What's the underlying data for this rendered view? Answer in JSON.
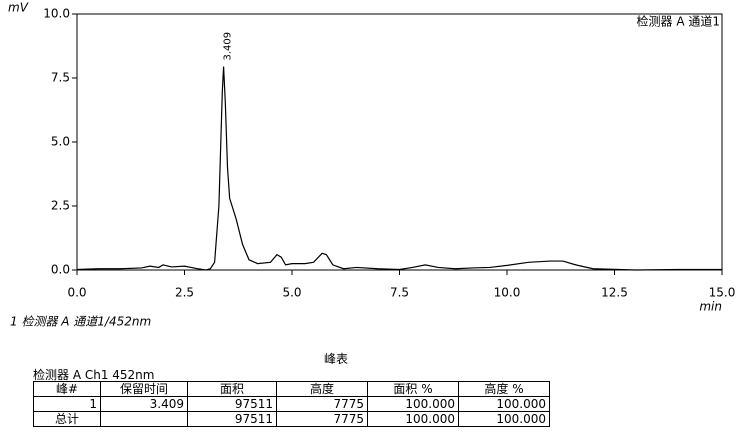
{
  "chart_data": {
    "type": "line",
    "y_label": "mV",
    "x_label": "min",
    "detector_label": "检测器 A 通道1",
    "xlim": [
      0,
      15
    ],
    "ylim": [
      0,
      10
    ],
    "xticks": [
      {
        "value": 0,
        "label": "0.0"
      },
      {
        "value": 2.5,
        "label": "2.5"
      },
      {
        "value": 5,
        "label": "5.0"
      },
      {
        "value": 7.5,
        "label": "7.5"
      },
      {
        "value": 10,
        "label": "10.0"
      },
      {
        "value": 12.5,
        "label": "12.5"
      },
      {
        "value": 15,
        "label": "15.0"
      }
    ],
    "yticks": [
      {
        "value": 0,
        "label": "0.0"
      },
      {
        "value": 2.5,
        "label": "2.5"
      },
      {
        "value": 5,
        "label": "5.0"
      },
      {
        "value": 7.5,
        "label": "7.5"
      },
      {
        "value": 10,
        "label": "10.0"
      }
    ],
    "x": [
      0,
      0.5,
      1.0,
      1.5,
      1.7,
      1.9,
      2.0,
      2.2,
      2.5,
      2.8,
      3.0,
      3.1,
      3.2,
      3.3,
      3.38,
      3.409,
      3.45,
      3.5,
      3.55,
      3.7,
      3.85,
      4.0,
      4.2,
      4.5,
      4.65,
      4.75,
      4.85,
      5.0,
      5.3,
      5.5,
      5.7,
      5.8,
      5.95,
      6.2,
      6.5,
      7.0,
      7.5,
      7.8,
      8.1,
      8.4,
      8.8,
      9.2,
      9.6,
      10.0,
      10.5,
      11.0,
      11.3,
      11.6,
      12.0,
      13.0,
      14.0,
      15.0
    ],
    "series": [
      {
        "name": "1 检测器 A 通道1/452nm",
        "color": "#000000",
        "values": [
          0.02,
          0.05,
          0.05,
          0.08,
          0.15,
          0.1,
          0.2,
          0.12,
          0.15,
          0.05,
          0.0,
          0.05,
          0.3,
          2.5,
          7.0,
          7.95,
          6.5,
          4.0,
          2.8,
          2.0,
          1.0,
          0.4,
          0.25,
          0.3,
          0.6,
          0.5,
          0.2,
          0.25,
          0.25,
          0.3,
          0.65,
          0.6,
          0.2,
          0.05,
          0.1,
          0.05,
          0.02,
          0.1,
          0.2,
          0.1,
          0.05,
          0.08,
          0.1,
          0.18,
          0.3,
          0.35,
          0.35,
          0.2,
          0.05,
          0.0,
          0.02,
          0.02
        ]
      }
    ],
    "annotations": [
      {
        "text": "3.409",
        "x": 3.409,
        "y": 7.95
      }
    ]
  },
  "peak_table": {
    "title": "峰表",
    "subtitle": "检测器 A Ch1 452nm",
    "columns": [
      "峰#",
      "保留时间",
      "面积",
      "高度",
      "面积 %",
      "高度 %"
    ],
    "rows": [
      [
        "1",
        "3.409",
        "97511",
        "7775",
        "100.000",
        "100.000"
      ],
      [
        "总计",
        null,
        "97511",
        "7775",
        "100.000",
        "100.000"
      ]
    ]
  }
}
